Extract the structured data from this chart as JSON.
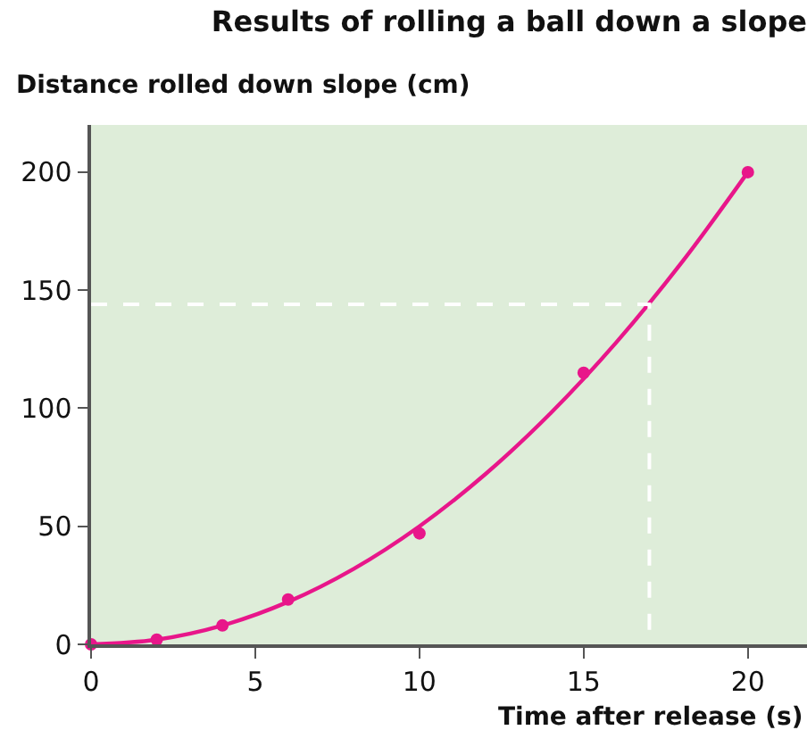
{
  "chart_data": {
    "type": "scatter",
    "title": "Results of rolling a ball down a slope",
    "ylabel": "Distance rolled down slope (cm)",
    "xlabel": "Time after release (s)",
    "x": [
      0,
      2,
      4,
      6,
      10,
      15,
      20
    ],
    "series": [
      {
        "color": "#e8168a",
        "values": [
          0,
          2,
          8,
          19,
          47,
          115,
          200
        ],
        "marker": "circle"
      },
      {
        "type": "line",
        "color": "#e8168a",
        "x": [
          0,
          2,
          4,
          6,
          8,
          10,
          12,
          14,
          16,
          18,
          20
        ],
        "values": [
          0,
          2,
          8,
          18,
          32,
          50,
          72,
          98,
          128,
          162,
          200
        ],
        "marker": "none"
      },
      {
        "type": "line",
        "color": "#ffffff",
        "x": [
          0,
          17,
          17
        ],
        "values": [
          144,
          144,
          0
        ],
        "marker": "none",
        "line_style": "dashed"
      }
    ],
    "xlim": [
      0,
      21.8
    ],
    "ylim": [
      0,
      220
    ],
    "xticks": [
      0,
      5,
      10,
      15,
      20
    ],
    "yticks": [
      0,
      50,
      100,
      150,
      200
    ],
    "grid": false
  }
}
